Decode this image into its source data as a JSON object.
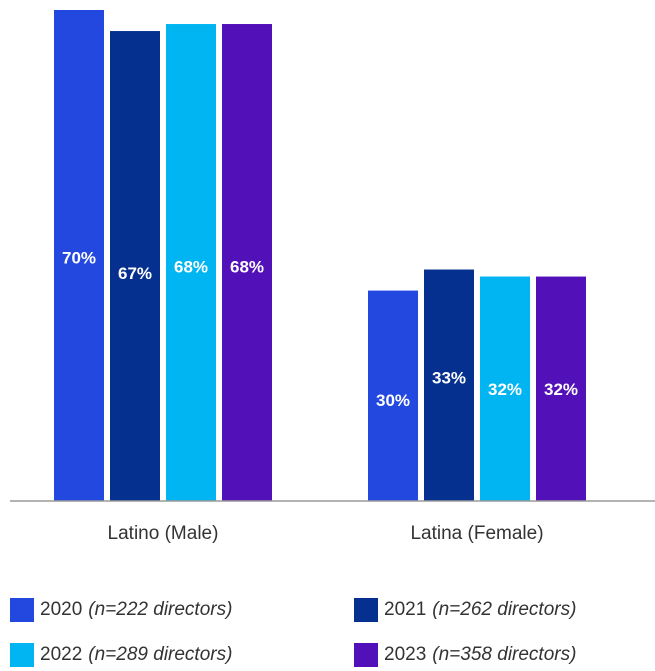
{
  "chart_data": {
    "type": "bar",
    "categories": [
      "Latino (Male)",
      "Latina (Female)"
    ],
    "series": [
      {
        "name": "2020",
        "note": "(n=222 directors)",
        "color": "#2248e0",
        "values": [
          70,
          30
        ],
        "labels": [
          "70%",
          "30%"
        ]
      },
      {
        "name": "2021",
        "note": "(n=262 directors)",
        "color": "#05308f",
        "values": [
          67,
          33
        ],
        "labels": [
          "67%",
          "33%"
        ]
      },
      {
        "name": "2022",
        "note": "(n=289 directors)",
        "color": "#00b5f1",
        "values": [
          68,
          32
        ],
        "labels": [
          "68%",
          "32%"
        ]
      },
      {
        "name": "2023",
        "note": "(n=358 directors)",
        "color": "#5210b8",
        "values": [
          68,
          32
        ],
        "labels": [
          "68%",
          "32%"
        ]
      }
    ],
    "ylim": [
      0,
      70
    ],
    "grid": false,
    "legend_placement": "bottom",
    "title": "",
    "xlabel": "",
    "ylabel": ""
  }
}
